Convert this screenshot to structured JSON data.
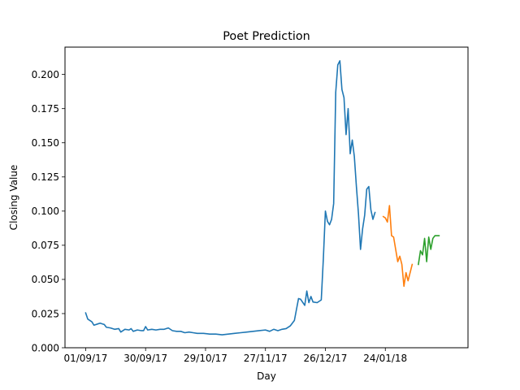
{
  "chart_data": {
    "type": "line",
    "title": "Poet Prediction",
    "xlabel": "Day",
    "ylabel": "Closing Value",
    "x_ticks": [
      "01/09/17",
      "30/09/17",
      "29/10/17",
      "27/11/17",
      "26/12/17",
      "24/01/18"
    ],
    "y_ticks": [
      "0.000",
      "0.025",
      "0.050",
      "0.075",
      "0.100",
      "0.125",
      "0.150",
      "0.175",
      "0.200"
    ],
    "xlim": [
      "2017-08-22",
      "2018-03-05"
    ],
    "ylim": [
      0,
      0.22
    ],
    "grid": false,
    "legend": false,
    "series": [
      {
        "color": "#1f77b4",
        "points": [
          [
            "2017-09-01",
            0.0255
          ],
          [
            "2017-09-02",
            0.021
          ],
          [
            "2017-09-04",
            0.019
          ],
          [
            "2017-09-05",
            0.0165
          ],
          [
            "2017-09-07",
            0.0175
          ],
          [
            "2017-09-08",
            0.018
          ],
          [
            "2017-09-10",
            0.017
          ],
          [
            "2017-09-11",
            0.015
          ],
          [
            "2017-09-13",
            0.0145
          ],
          [
            "2017-09-15",
            0.0135
          ],
          [
            "2017-09-17",
            0.014
          ],
          [
            "2017-09-18",
            0.0115
          ],
          [
            "2017-09-20",
            0.0135
          ],
          [
            "2017-09-22",
            0.013
          ],
          [
            "2017-09-23",
            0.014
          ],
          [
            "2017-09-24",
            0.012
          ],
          [
            "2017-09-26",
            0.013
          ],
          [
            "2017-09-28",
            0.0125
          ],
          [
            "2017-09-29",
            0.0125
          ],
          [
            "2017-09-30",
            0.0155
          ],
          [
            "2017-10-01",
            0.013
          ],
          [
            "2017-10-03",
            0.0135
          ],
          [
            "2017-10-05",
            0.013
          ],
          [
            "2017-10-07",
            0.0135
          ],
          [
            "2017-10-09",
            0.0135
          ],
          [
            "2017-10-11",
            0.0145
          ],
          [
            "2017-10-13",
            0.0125
          ],
          [
            "2017-10-15",
            0.012
          ],
          [
            "2017-10-17",
            0.012
          ],
          [
            "2017-10-19",
            0.011
          ],
          [
            "2017-10-21",
            0.0115
          ],
          [
            "2017-10-23",
            0.011
          ],
          [
            "2017-10-25",
            0.0105
          ],
          [
            "2017-10-28",
            0.0105
          ],
          [
            "2017-10-31",
            0.01
          ],
          [
            "2017-11-03",
            0.01
          ],
          [
            "2017-11-06",
            0.0095
          ],
          [
            "2017-11-09",
            0.01
          ],
          [
            "2017-11-12",
            0.0105
          ],
          [
            "2017-11-15",
            0.011
          ],
          [
            "2017-11-18",
            0.0115
          ],
          [
            "2017-11-21",
            0.012
          ],
          [
            "2017-11-24",
            0.0125
          ],
          [
            "2017-11-27",
            0.013
          ],
          [
            "2017-11-29",
            0.012
          ],
          [
            "2017-12-01",
            0.0135
          ],
          [
            "2017-12-03",
            0.0125
          ],
          [
            "2017-12-05",
            0.0135
          ],
          [
            "2017-12-07",
            0.014
          ],
          [
            "2017-12-09",
            0.016
          ],
          [
            "2017-12-11",
            0.02
          ],
          [
            "2017-12-12",
            0.028
          ],
          [
            "2017-12-13",
            0.036
          ],
          [
            "2017-12-14",
            0.0355
          ],
          [
            "2017-12-16",
            0.031
          ],
          [
            "2017-12-17",
            0.0415
          ],
          [
            "2017-12-18",
            0.033
          ],
          [
            "2017-12-19",
            0.0375
          ],
          [
            "2017-12-20",
            0.0335
          ],
          [
            "2017-12-22",
            0.033
          ],
          [
            "2017-12-24",
            0.035
          ],
          [
            "2017-12-25",
            0.065
          ],
          [
            "2017-12-26",
            0.1
          ],
          [
            "2017-12-27",
            0.0925
          ],
          [
            "2017-12-28",
            0.09
          ],
          [
            "2017-12-29",
            0.094
          ],
          [
            "2017-12-30",
            0.1055
          ],
          [
            "2017-12-31",
            0.187
          ],
          [
            "2018-01-01",
            0.207
          ],
          [
            "2018-01-02",
            0.21
          ],
          [
            "2018-01-03",
            0.189
          ],
          [
            "2018-01-04",
            0.183
          ],
          [
            "2018-01-05",
            0.156
          ],
          [
            "2018-01-06",
            0.175
          ],
          [
            "2018-01-07",
            0.142
          ],
          [
            "2018-01-08",
            0.152
          ],
          [
            "2018-01-09",
            0.14
          ],
          [
            "2018-01-10",
            0.118
          ],
          [
            "2018-01-11",
            0.098
          ],
          [
            "2018-01-12",
            0.072
          ],
          [
            "2018-01-13",
            0.087
          ],
          [
            "2018-01-14",
            0.097
          ],
          [
            "2018-01-15",
            0.116
          ],
          [
            "2018-01-16",
            0.118
          ],
          [
            "2018-01-17",
            0.101
          ],
          [
            "2018-01-18",
            0.094
          ],
          [
            "2018-01-19",
            0.099
          ]
        ]
      },
      {
        "color": "#ff7f0e",
        "points": [
          [
            "2018-01-23",
            0.096
          ],
          [
            "2018-01-24",
            0.095
          ],
          [
            "2018-01-25",
            0.092
          ],
          [
            "2018-01-26",
            0.104
          ],
          [
            "2018-01-27",
            0.082
          ],
          [
            "2018-01-28",
            0.081
          ],
          [
            "2018-01-29",
            0.072
          ],
          [
            "2018-01-30",
            0.063
          ],
          [
            "2018-01-31",
            0.067
          ],
          [
            "2018-02-01",
            0.061
          ],
          [
            "2018-02-02",
            0.045
          ],
          [
            "2018-02-03",
            0.055
          ],
          [
            "2018-02-04",
            0.049
          ],
          [
            "2018-02-05",
            0.055
          ],
          [
            "2018-02-06",
            0.061
          ]
        ]
      },
      {
        "color": "#2ca02c",
        "points": [
          [
            "2018-02-09",
            0.061
          ],
          [
            "2018-02-10",
            0.071
          ],
          [
            "2018-02-11",
            0.068
          ],
          [
            "2018-02-12",
            0.08
          ],
          [
            "2018-02-13",
            0.063
          ],
          [
            "2018-02-14",
            0.081
          ],
          [
            "2018-02-15",
            0.072
          ],
          [
            "2018-02-16",
            0.08
          ],
          [
            "2018-02-17",
            0.082
          ],
          [
            "2018-02-18",
            0.082
          ],
          [
            "2018-02-19",
            0.082
          ]
        ]
      }
    ]
  }
}
